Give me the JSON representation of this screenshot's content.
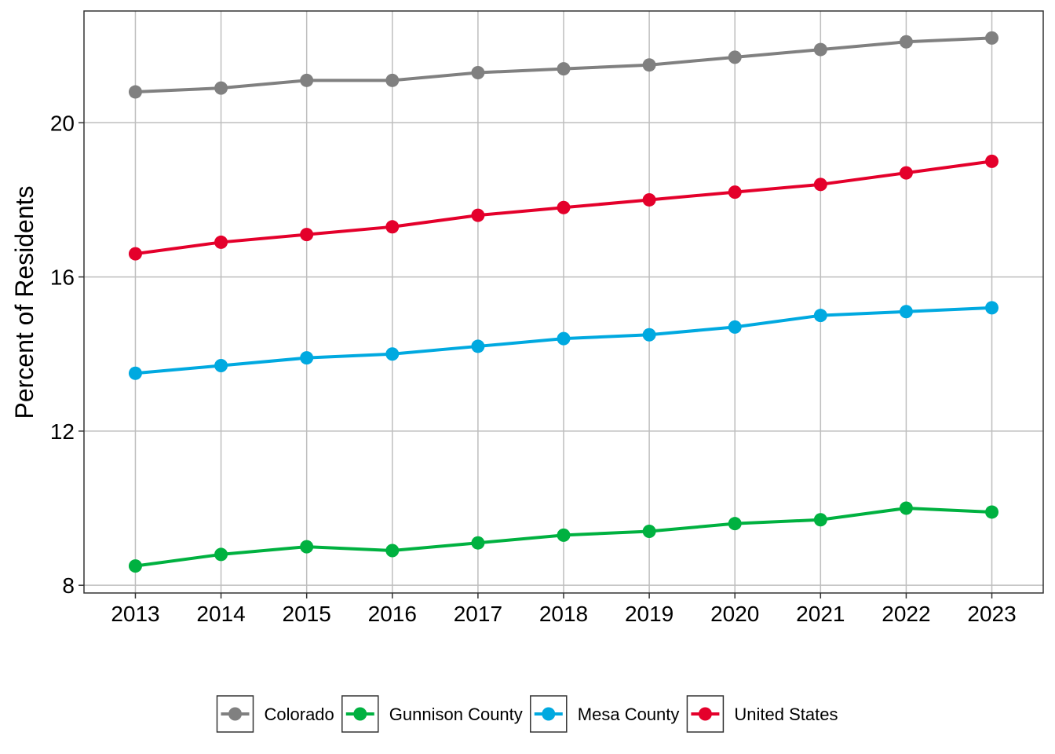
{
  "chart_data": {
    "type": "line",
    "title": "",
    "xlabel": "",
    "ylabel": "Percent of Residents",
    "x": [
      2013,
      2014,
      2015,
      2016,
      2017,
      2018,
      2019,
      2020,
      2021,
      2022,
      2023
    ],
    "y_ticks": [
      8,
      12,
      16,
      20
    ],
    "ylim": [
      7.8,
      22.9
    ],
    "grid": true,
    "legend_position": "bottom",
    "series": [
      {
        "name": "Colorado",
        "color": "#808080",
        "values": [
          20.8,
          20.9,
          21.1,
          21.1,
          21.3,
          21.4,
          21.5,
          21.7,
          21.9,
          22.1,
          22.2
        ]
      },
      {
        "name": "Gunnison County",
        "color": "#00B140",
        "values": [
          8.5,
          8.8,
          9.0,
          8.9,
          9.1,
          9.3,
          9.4,
          9.6,
          9.7,
          10.0,
          9.9
        ]
      },
      {
        "name": "Mesa County",
        "color": "#00A9E0",
        "values": [
          13.5,
          13.7,
          13.9,
          14.0,
          14.2,
          14.4,
          14.5,
          14.7,
          15.0,
          15.1,
          15.2
        ]
      },
      {
        "name": "United States",
        "color": "#E4002B",
        "values": [
          16.6,
          16.9,
          17.1,
          17.3,
          17.6,
          17.8,
          18.0,
          18.2,
          18.4,
          18.7,
          19.0
        ]
      }
    ]
  }
}
